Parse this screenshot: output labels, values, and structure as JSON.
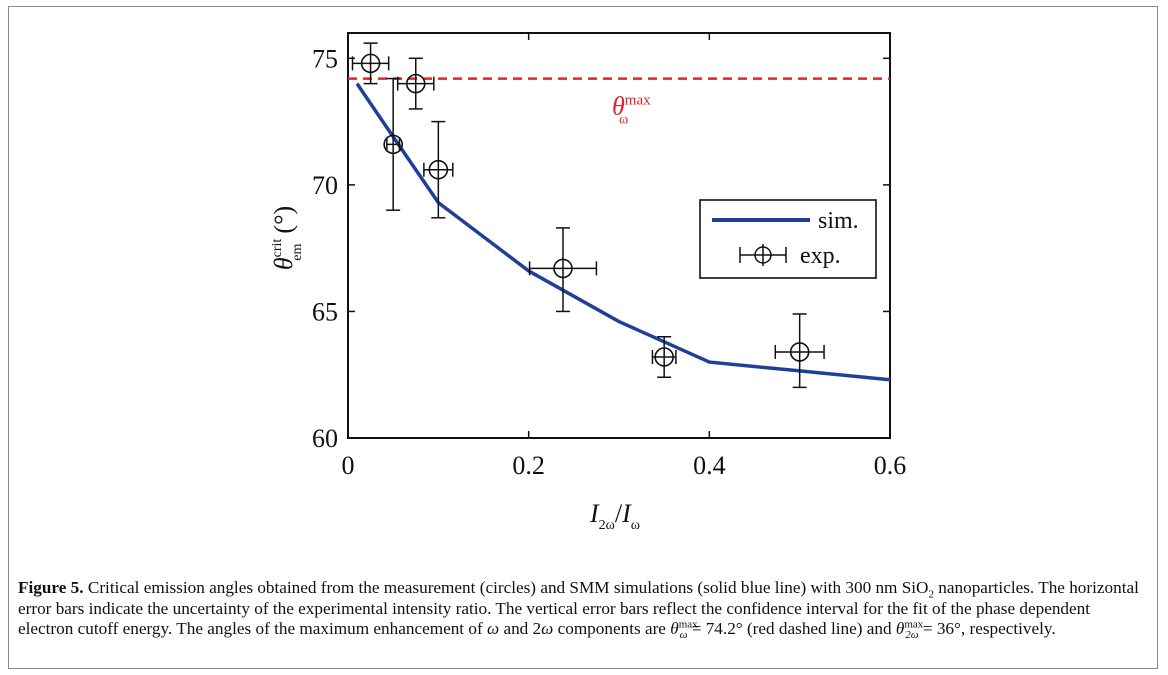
{
  "chart_data": {
    "type": "scatter",
    "xlim": [
      0,
      0.6
    ],
    "ylim": [
      60,
      76
    ],
    "x_ticks": [
      0,
      0.2,
      0.4,
      0.6
    ],
    "x_tick_labels": [
      "0",
      "0.2",
      "0.4",
      "0.6"
    ],
    "y_ticks": [
      60,
      65,
      70,
      75
    ],
    "y_tick_labels": [
      "60",
      "65",
      "70",
      "75"
    ],
    "xlabel_main": "I",
    "xlabel_sub1": "2ω",
    "xlabel_slash": "/",
    "xlabel_sub2": "ω",
    "ylabel_main": "θ",
    "ylabel_sup": "crit",
    "ylabel_sub": "em",
    "ylabel_unit": "(°)",
    "grid": false,
    "legend_position": "right-middle",
    "reference_line": {
      "y": 74.2,
      "style": "dashed",
      "color": "#e0252b",
      "label_main": "θ",
      "label_sup": "max",
      "label_sub": "ω"
    },
    "series": [
      {
        "name": "sim.",
        "kind": "line",
        "color": "#1f3f99",
        "x": [
          0.01,
          0.05,
          0.1,
          0.2,
          0.3,
          0.4,
          0.5,
          0.6
        ],
        "y": [
          74.0,
          71.9,
          69.3,
          66.6,
          64.6,
          63.0,
          62.65,
          62.3
        ]
      },
      {
        "name": "exp.",
        "kind": "errorbar",
        "color": "#111111",
        "x": [
          0.025,
          0.05,
          0.075,
          0.1,
          0.238,
          0.35,
          0.5
        ],
        "y": [
          74.8,
          71.6,
          74.0,
          70.6,
          66.7,
          63.2,
          63.4
        ],
        "xerr": [
          0.02,
          0.007,
          0.02,
          0.016,
          0.037,
          0.013,
          0.027
        ],
        "yerr_low": [
          0.8,
          2.6,
          1.0,
          1.9,
          1.7,
          0.8,
          1.4
        ],
        "yerr_high": [
          0.8,
          2.6,
          1.0,
          1.9,
          1.6,
          0.8,
          1.5
        ]
      }
    ]
  },
  "caption": {
    "label": "Figure 5.",
    "part1": " Critical emission angles obtained from the measurement (circles) and SMM simulations (solid blue line) with 300 nm SiO",
    "sio2_sub": "2",
    "part2": " nanoparticles. The horizontal error bars indicate the uncertainty of the experimental intensity ratio. The vertical error bars reflect the confidence interval for the fit of the phase dependent electron cutoff energy. The angles of the maximum enhancement of ",
    "omega": "ω",
    "and_text": " and 2",
    "omega2": "ω",
    "part3": " components are ",
    "theta1": "θ",
    "theta1_sup": "max",
    "theta1_sub": "ω",
    "eq1": " = 74.2° (red dashed line) and ",
    "theta2": "θ",
    "theta2_sup": "max",
    "theta2_sub": "2ω",
    "eq2": " = 36°, respectively."
  }
}
